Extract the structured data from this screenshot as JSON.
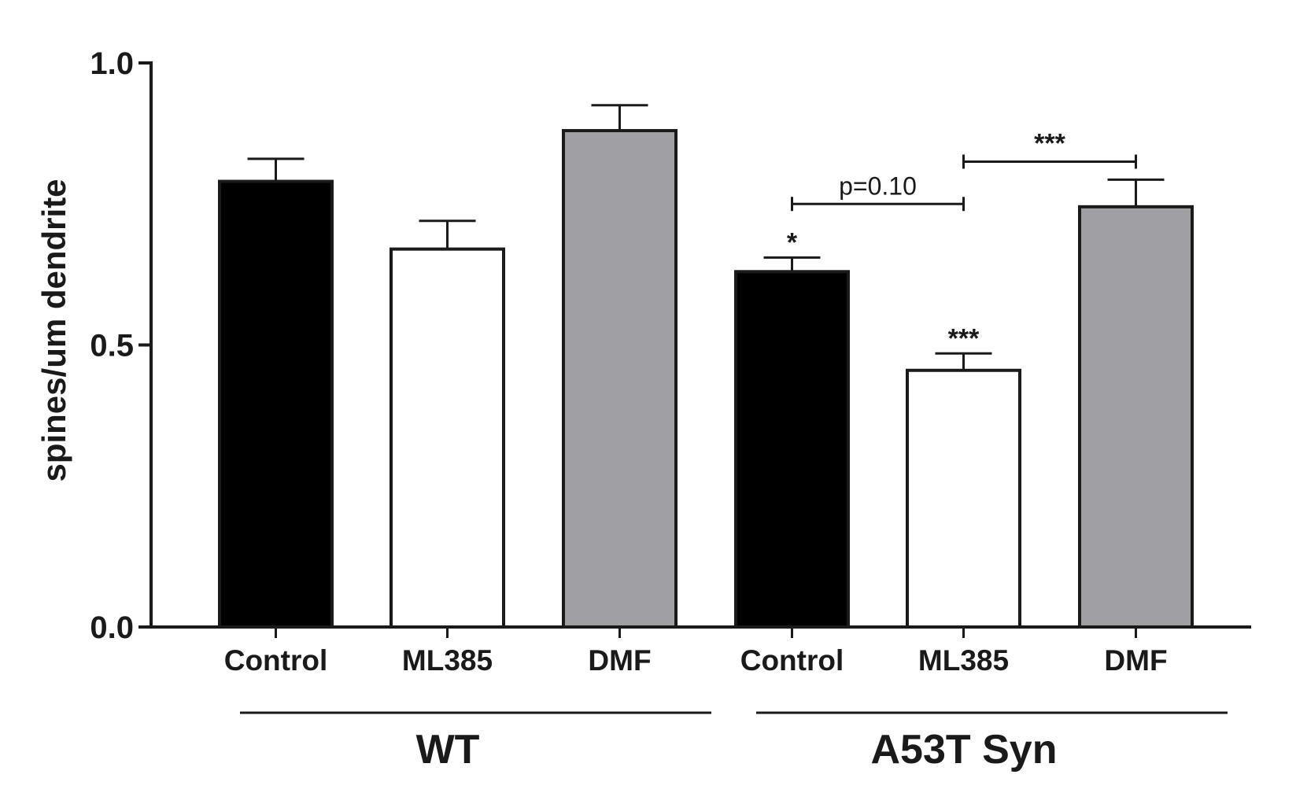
{
  "chart_data": {
    "type": "bar",
    "title": "",
    "xlabel": "",
    "ylabel": "spines/um dendrite",
    "ylim": [
      0,
      1.0
    ],
    "yticks": [
      {
        "value": 0.0,
        "label": "0.0"
      },
      {
        "value": 0.5,
        "label": "0.5"
      },
      {
        "value": 1.0,
        "label": "1.0"
      }
    ],
    "categories": [
      "Control",
      "ML385",
      "DMF",
      "Control",
      "ML385",
      "DMF"
    ],
    "values": [
      0.79,
      0.67,
      0.88,
      0.63,
      0.455,
      0.745
    ],
    "errors": [
      0.04,
      0.05,
      0.045,
      0.025,
      0.03,
      0.048
    ],
    "fills": [
      "#000000",
      "#ffffff",
      "#a0a0a4",
      "#000000",
      "#ffffff",
      "#a0a0a4"
    ],
    "groups": [
      {
        "label": "WT",
        "start": 0,
        "end": 2
      },
      {
        "label": "A53T Syn",
        "start": 3,
        "end": 5
      }
    ],
    "bar_significance": [
      {
        "bar": 3,
        "label": "*"
      },
      {
        "bar": 4,
        "label": "***"
      }
    ],
    "comparisons": [
      {
        "from": 3,
        "to": 4,
        "label": "p=0.10",
        "y": 0.75
      },
      {
        "from": 4,
        "to": 5,
        "label": "***",
        "y": 0.825
      }
    ]
  }
}
